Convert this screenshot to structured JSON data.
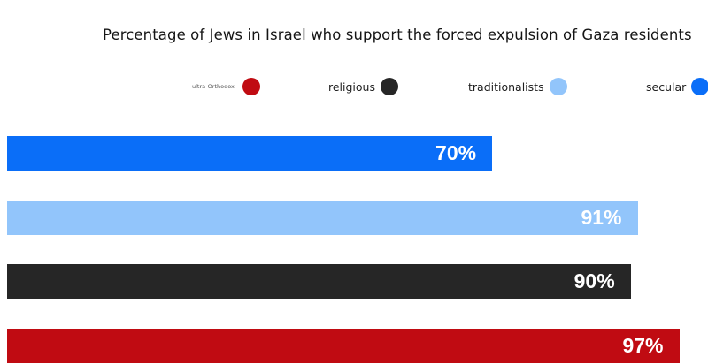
{
  "chart_data": {
    "type": "bar",
    "orientation": "horizontal",
    "title": "Percentage of Jews in Israel who support the forced expulsion of Gaza residents",
    "legend_placement": "top",
    "legend": [
      {
        "label": "ultra-Orthodox",
        "color": "#c00b12"
      },
      {
        "label": "religious",
        "color": "#262626"
      },
      {
        "label": "traditionalists",
        "color": "#92c5fb"
      },
      {
        "label": "secular",
        "color": "#0a6ef8"
      }
    ],
    "bars": [
      {
        "series": "secular",
        "value": 70,
        "label": "70%",
        "color": "#0a6ef8"
      },
      {
        "series": "traditionalists",
        "value": 91,
        "label": "91%",
        "color": "#92c5fb"
      },
      {
        "series": "religious",
        "value": 90,
        "label": "90%",
        "color": "#262626"
      },
      {
        "series": "ultra-Orthodox",
        "value": 97,
        "label": "97%",
        "color": "#c00b12"
      }
    ],
    "xlim": [
      0,
      100
    ],
    "grid": false
  }
}
